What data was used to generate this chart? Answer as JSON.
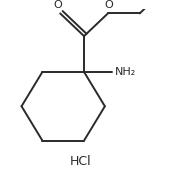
{
  "background_color": "#ffffff",
  "line_color": "#2a2a2a",
  "line_width": 1.4,
  "text_color": "#2a2a2a",
  "hcl_label": "HCl",
  "nh2_label": "NH₂",
  "o_carbonyl": "O",
  "o_ester": "O",
  "figsize": [
    1.81,
    1.73
  ],
  "dpi": 100,
  "xlim": [
    0,
    181
  ],
  "ylim": [
    0,
    173
  ]
}
